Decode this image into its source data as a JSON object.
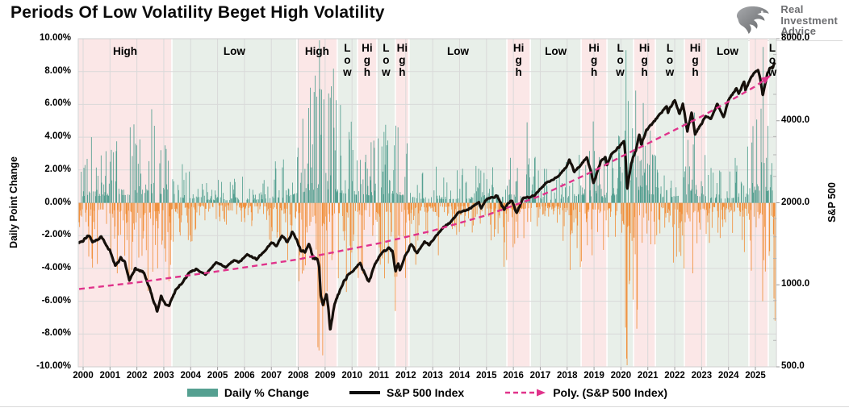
{
  "page": {
    "title": "Periods Of Low Volatility Beget High Volatility"
  },
  "logo": {
    "line1": "Real",
    "line2": "Investment",
    "line3": "Advice"
  },
  "legend": {
    "items": [
      {
        "label": "Daily % Change",
        "swatch": "bar"
      },
      {
        "label": "S&P 500 Index",
        "swatch": "line"
      },
      {
        "label": "Poly. (S&P 500 Index)",
        "swatch": "dashed-arrow"
      }
    ]
  },
  "colors": {
    "daily_change_up": "#55a091",
    "daily_change_down": "#f0913e",
    "sp500_line": "#16100b",
    "poly_line": "#e0338b",
    "band_high": "#fbe7e7",
    "band_low": "#e8efe9",
    "grid": "#d9d9d9",
    "logo_gray": "#6d6e71"
  },
  "chart_data": {
    "type": "bar",
    "subtype": "combo-bar-line-dual-axis",
    "title": "Periods Of Low Volatility Beget High Volatility",
    "left_axis": {
      "title": "Daily Point Change",
      "min": -10,
      "max": 10,
      "ticks": [
        "10.00%",
        "8.00%",
        "6.00%",
        "4.00%",
        "2.00%",
        "0.00%",
        "-2.00%",
        "-4.00%",
        "-6.00%",
        "-8.00%",
        "-10.00%"
      ],
      "tick_values": [
        10,
        8,
        6,
        4,
        2,
        0,
        -2,
        -4,
        -6,
        -8,
        -10
      ]
    },
    "right_axis": {
      "title": "S&P 500",
      "scale": "log",
      "min": 500,
      "max": 8000,
      "ticks": [
        "8000.0",
        "4000.0",
        "2000.0",
        "1000.0",
        "500.0"
      ],
      "tick_values": [
        8000,
        4000,
        2000,
        1000,
        500
      ]
    },
    "x_axis": {
      "min": 1999.82,
      "max": 2025.78,
      "ticks": [
        "2000",
        "2001",
        "2002",
        "2003",
        "2004",
        "2005",
        "2006",
        "2007",
        "2008",
        "2009",
        "2010",
        "2011",
        "2012",
        "2013",
        "2014",
        "2015",
        "2016",
        "2017",
        "2018",
        "2019",
        "2020",
        "2021",
        "2022",
        "2023",
        "2024",
        "2025"
      ]
    },
    "grid": true,
    "legend_position": "bottom",
    "volatility_bands": [
      {
        "label": "High",
        "regime": "high",
        "start": 1999.82,
        "end": 2003.3,
        "orientation": "horizontal"
      },
      {
        "label": "Low",
        "regime": "low",
        "start": 2003.3,
        "end": 2007.95,
        "orientation": "horizontal"
      },
      {
        "label": "High",
        "regime": "high",
        "start": 2007.95,
        "end": 2009.45,
        "orientation": "horizontal"
      },
      {
        "label": "Low",
        "regime": "low",
        "start": 2009.45,
        "end": 2010.2,
        "orientation": "vertical"
      },
      {
        "label": "High",
        "regime": "high",
        "start": 2010.2,
        "end": 2010.92,
        "orientation": "vertical"
      },
      {
        "label": "Low",
        "regime": "low",
        "start": 2010.92,
        "end": 2011.61,
        "orientation": "vertical"
      },
      {
        "label": "High",
        "regime": "high",
        "start": 2011.61,
        "end": 2012.12,
        "orientation": "vertical"
      },
      {
        "label": "Low",
        "regime": "low",
        "start": 2012.12,
        "end": 2015.76,
        "orientation": "horizontal"
      },
      {
        "label": "High",
        "regime": "high",
        "start": 2015.76,
        "end": 2016.63,
        "orientation": "vertical"
      },
      {
        "label": "Low",
        "regime": "low",
        "start": 2016.63,
        "end": 2018.52,
        "orientation": "horizontal"
      },
      {
        "label": "High",
        "regime": "high",
        "start": 2018.52,
        "end": 2019.48,
        "orientation": "vertical"
      },
      {
        "label": "Low",
        "regime": "low",
        "start": 2019.48,
        "end": 2020.47,
        "orientation": "vertical"
      },
      {
        "label": "High",
        "regime": "high",
        "start": 2020.47,
        "end": 2021.28,
        "orientation": "vertical"
      },
      {
        "label": "Low",
        "regime": "low",
        "start": 2021.28,
        "end": 2022.36,
        "orientation": "vertical"
      },
      {
        "label": "High",
        "regime": "high",
        "start": 2022.36,
        "end": 2023.17,
        "orientation": "vertical"
      },
      {
        "label": "Low",
        "regime": "low",
        "start": 2023.17,
        "end": 2024.76,
        "orientation": "horizontal"
      },
      {
        "label": "",
        "regime": "high",
        "start": 2024.76,
        "end": 2025.48,
        "orientation": "vertical"
      },
      {
        "label": "Low",
        "regime": "low",
        "start": 2025.48,
        "end": 2025.78,
        "orientation": "vertical"
      }
    ],
    "sp500_series": {
      "name": "S&P 500 Index",
      "points": [
        [
          1999.85,
          1430
        ],
        [
          2000.0,
          1455
        ],
        [
          2000.22,
          1525
        ],
        [
          2000.35,
          1440
        ],
        [
          2000.55,
          1460
        ],
        [
          2000.68,
          1500
        ],
        [
          2000.85,
          1400
        ],
        [
          2001.0,
          1335
        ],
        [
          2001.2,
          1170
        ],
        [
          2001.4,
          1255
        ],
        [
          2001.55,
          1210
        ],
        [
          2001.72,
          1040
        ],
        [
          2001.95,
          1150
        ],
        [
          2002.1,
          1130
        ],
        [
          2002.25,
          1105
        ],
        [
          2002.45,
          990
        ],
        [
          2002.6,
          880
        ],
        [
          2002.76,
          800
        ],
        [
          2002.9,
          910
        ],
        [
          2003.05,
          850
        ],
        [
          2003.2,
          840
        ],
        [
          2003.45,
          960
        ],
        [
          2003.7,
          1020
        ],
        [
          2003.95,
          1110
        ],
        [
          2004.2,
          1140
        ],
        [
          2004.55,
          1090
        ],
        [
          2004.95,
          1210
        ],
        [
          2005.3,
          1160
        ],
        [
          2005.6,
          1230
        ],
        [
          2005.8,
          1210
        ],
        [
          2006.1,
          1290
        ],
        [
          2006.45,
          1240
        ],
        [
          2006.75,
          1330
        ],
        [
          2007.0,
          1430
        ],
        [
          2007.2,
          1390
        ],
        [
          2007.4,
          1520
        ],
        [
          2007.6,
          1430
        ],
        [
          2007.78,
          1560
        ],
        [
          2007.95,
          1470
        ],
        [
          2008.1,
          1330
        ],
        [
          2008.25,
          1320
        ],
        [
          2008.4,
          1420
        ],
        [
          2008.55,
          1260
        ],
        [
          2008.7,
          1250
        ],
        [
          2008.78,
          1150
        ],
        [
          2008.84,
          900
        ],
        [
          2008.92,
          850
        ],
        [
          2008.98,
          890
        ],
        [
          2009.05,
          930
        ],
        [
          2009.12,
          820
        ],
        [
          2009.19,
          680
        ],
        [
          2009.35,
          850
        ],
        [
          2009.5,
          930
        ],
        [
          2009.7,
          1030
        ],
        [
          2009.9,
          1100
        ],
        [
          2010.1,
          1140
        ],
        [
          2010.3,
          1200
        ],
        [
          2010.52,
          1070
        ],
        [
          2010.63,
          1030
        ],
        [
          2010.85,
          1180
        ],
        [
          2011.05,
          1290
        ],
        [
          2011.35,
          1360
        ],
        [
          2011.5,
          1340
        ],
        [
          2011.62,
          1120
        ],
        [
          2011.72,
          1200
        ],
        [
          2011.78,
          1120
        ],
        [
          2011.95,
          1260
        ],
        [
          2012.2,
          1410
        ],
        [
          2012.42,
          1310
        ],
        [
          2012.7,
          1440
        ],
        [
          2012.87,
          1400
        ],
        [
          2013.1,
          1500
        ],
        [
          2013.4,
          1630
        ],
        [
          2013.62,
          1680
        ],
        [
          2013.95,
          1840
        ],
        [
          2014.3,
          1880
        ],
        [
          2014.72,
          2010
        ],
        [
          2014.8,
          1910
        ],
        [
          2015.0,
          2060
        ],
        [
          2015.4,
          2120
        ],
        [
          2015.66,
          1880
        ],
        [
          2015.8,
          1990
        ],
        [
          2015.95,
          2040
        ],
        [
          2016.12,
          1830
        ],
        [
          2016.35,
          2070
        ],
        [
          2016.6,
          2100
        ],
        [
          2016.8,
          2130
        ],
        [
          2016.9,
          2200
        ],
        [
          2017.2,
          2360
        ],
        [
          2017.6,
          2470
        ],
        [
          2017.95,
          2680
        ],
        [
          2018.08,
          2870
        ],
        [
          2018.27,
          2600
        ],
        [
          2018.55,
          2780
        ],
        [
          2018.73,
          2930
        ],
        [
          2018.87,
          2630
        ],
        [
          2018.98,
          2350
        ],
        [
          2019.25,
          2850
        ],
        [
          2019.42,
          2940
        ],
        [
          2019.48,
          2750
        ],
        [
          2019.65,
          3020
        ],
        [
          2019.97,
          3240
        ],
        [
          2020.12,
          3380
        ],
        [
          2020.17,
          3000
        ],
        [
          2020.23,
          2240
        ],
        [
          2020.38,
          2800
        ],
        [
          2020.55,
          3100
        ],
        [
          2020.68,
          3580
        ],
        [
          2020.76,
          3270
        ],
        [
          2020.95,
          3700
        ],
        [
          2021.2,
          3940
        ],
        [
          2021.45,
          4230
        ],
        [
          2021.7,
          4520
        ],
        [
          2021.75,
          4300
        ],
        [
          2022.0,
          4790
        ],
        [
          2022.18,
          4220
        ],
        [
          2022.3,
          4630
        ],
        [
          2022.47,
          3670
        ],
        [
          2022.63,
          4290
        ],
        [
          2022.76,
          3580
        ],
        [
          2022.95,
          3850
        ],
        [
          2023.15,
          4150
        ],
        [
          2023.35,
          4080
        ],
        [
          2023.58,
          4600
        ],
        [
          2023.82,
          4120
        ],
        [
          2024.0,
          4780
        ],
        [
          2024.3,
          5260
        ],
        [
          2024.38,
          5020
        ],
        [
          2024.58,
          5570
        ],
        [
          2024.63,
          5190
        ],
        [
          2024.85,
          5800
        ],
        [
          2024.98,
          6050
        ],
        [
          2025.1,
          6140
        ],
        [
          2025.2,
          5580
        ],
        [
          2025.27,
          4960
        ],
        [
          2025.45,
          6000
        ],
        [
          2025.6,
          6280
        ],
        [
          2025.72,
          6420
        ]
      ]
    },
    "poly_trend": {
      "name": "Poly. (S&P 500 Index)",
      "points": [
        [
          1999.85,
          965
        ],
        [
          2002,
          1020
        ],
        [
          2005,
          1120
        ],
        [
          2008,
          1240
        ],
        [
          2011,
          1420
        ],
        [
          2013,
          1580
        ],
        [
          2015,
          1800
        ],
        [
          2017,
          2120
        ],
        [
          2019,
          2620
        ],
        [
          2020,
          2950
        ],
        [
          2021,
          3300
        ],
        [
          2022,
          3700
        ],
        [
          2023,
          4150
        ],
        [
          2024,
          4700
        ],
        [
          2025,
          5350
        ],
        [
          2025.55,
          5850
        ]
      ]
    },
    "daily_change_envelope_pct": [
      [
        2000,
        4.0
      ],
      [
        2001,
        4.6
      ],
      [
        2002,
        5.6
      ],
      [
        2003,
        3.4
      ],
      [
        2004,
        1.6
      ],
      [
        2005,
        1.5
      ],
      [
        2006,
        1.9
      ],
      [
        2007,
        3.2
      ],
      [
        2008,
        8.0
      ],
      [
        2009,
        6.2
      ],
      [
        2010,
        4.2
      ],
      [
        2011,
        5.6
      ],
      [
        2012,
        2.4
      ],
      [
        2013,
        2.2
      ],
      [
        2014,
        2.1
      ],
      [
        2015,
        3.6
      ],
      [
        2016,
        3.4
      ],
      [
        2017,
        1.6
      ],
      [
        2018,
        4.6
      ],
      [
        2019,
        2.9
      ],
      [
        2020,
        8.8
      ],
      [
        2021,
        2.5
      ],
      [
        2022,
        5.2
      ],
      [
        2023,
        2.3
      ],
      [
        2024,
        2.9
      ],
      [
        2025,
        7.5
      ]
    ],
    "notable_daily_moves_pct": [
      [
        2000.3,
        4.0
      ],
      [
        2000.33,
        -3.4
      ],
      [
        2001.27,
        -4.3
      ],
      [
        2001.7,
        -4.9
      ],
      [
        2001.74,
        4.6
      ],
      [
        2002.55,
        5.7
      ],
      [
        2002.58,
        -4.2
      ],
      [
        2002.76,
        -4.0
      ],
      [
        2003.05,
        3.5
      ],
      [
        2007.6,
        -3.5
      ],
      [
        2008.05,
        -3.2
      ],
      [
        2008.72,
        -8.8
      ],
      [
        2008.76,
        -9.0
      ],
      [
        2008.79,
        9.9
      ],
      [
        2008.83,
        -6.1
      ],
      [
        2008.87,
        6.9
      ],
      [
        2008.9,
        -9.3
      ],
      [
        2008.95,
        6.3
      ],
      [
        2009.06,
        -5.4
      ],
      [
        2009.18,
        6.4
      ],
      [
        2009.22,
        7.1
      ],
      [
        2010.36,
        -3.9
      ],
      [
        2011.6,
        -6.6
      ],
      [
        2011.63,
        4.7
      ],
      [
        2011.66,
        -4.5
      ],
      [
        2015.65,
        -3.9
      ],
      [
        2016.05,
        -2.5
      ],
      [
        2018.1,
        -4.1
      ],
      [
        2018.93,
        -3.2
      ],
      [
        2018.96,
        4.96
      ],
      [
        2020.17,
        -7.6
      ],
      [
        2020.19,
        9.3
      ],
      [
        2020.21,
        -9.5
      ],
      [
        2020.23,
        -9.9
      ],
      [
        2020.26,
        6.2
      ],
      [
        2020.45,
        -5.9
      ],
      [
        2022.35,
        -4.0
      ],
      [
        2022.67,
        -4.3
      ],
      [
        2022.73,
        5.5
      ],
      [
        2024.59,
        -3.0
      ],
      [
        2025.26,
        -6.0
      ],
      [
        2025.28,
        9.5
      ],
      [
        2025.3,
        -3.5
      ]
    ]
  }
}
